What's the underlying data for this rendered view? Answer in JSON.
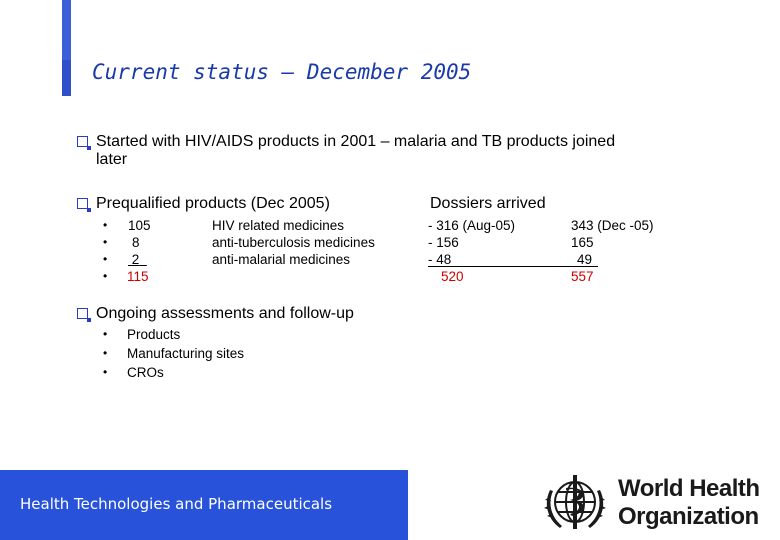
{
  "title": "Current status – December 2005",
  "intro": {
    "line1": "Started with HIV/AIDS products in 2001 – malaria and TB products joined",
    "line2": "later"
  },
  "prequalified": {
    "heading": "Prequalified products (Dec 2005)",
    "rows": [
      {
        "bullet": "•",
        "count": "105",
        "label": "HIV related medicines"
      },
      {
        "bullet": "•",
        "count": "8",
        "label": "anti-tuberculosis medicines"
      },
      {
        "bullet": "•",
        "count": "2",
        "label": "anti-malarial medicines"
      },
      {
        "bullet": "•",
        "count": "115",
        "label": ""
      }
    ]
  },
  "dossiers": {
    "heading": "Dossiers arrived",
    "col1": [
      "- 316 (Aug-05)",
      "- 156",
      "- 48",
      "520"
    ],
    "col2": [
      "343 (Dec -05)",
      "165",
      "49",
      "557"
    ]
  },
  "ongoing": {
    "heading": "Ongoing assessments and follow-up",
    "items": [
      "Products",
      "Manufacturing sites",
      "CROs"
    ]
  },
  "footer": {
    "text": "Health Technologies and Pharmaceuticals"
  },
  "logo": {
    "line1": "World Health",
    "line2": "Organization",
    "emblem": "who-emblem-icon"
  },
  "colors": {
    "accent": "#3b5fd9",
    "title": "#1a3aa8",
    "highlight": "#cc0000",
    "footer": "#2752d9"
  }
}
